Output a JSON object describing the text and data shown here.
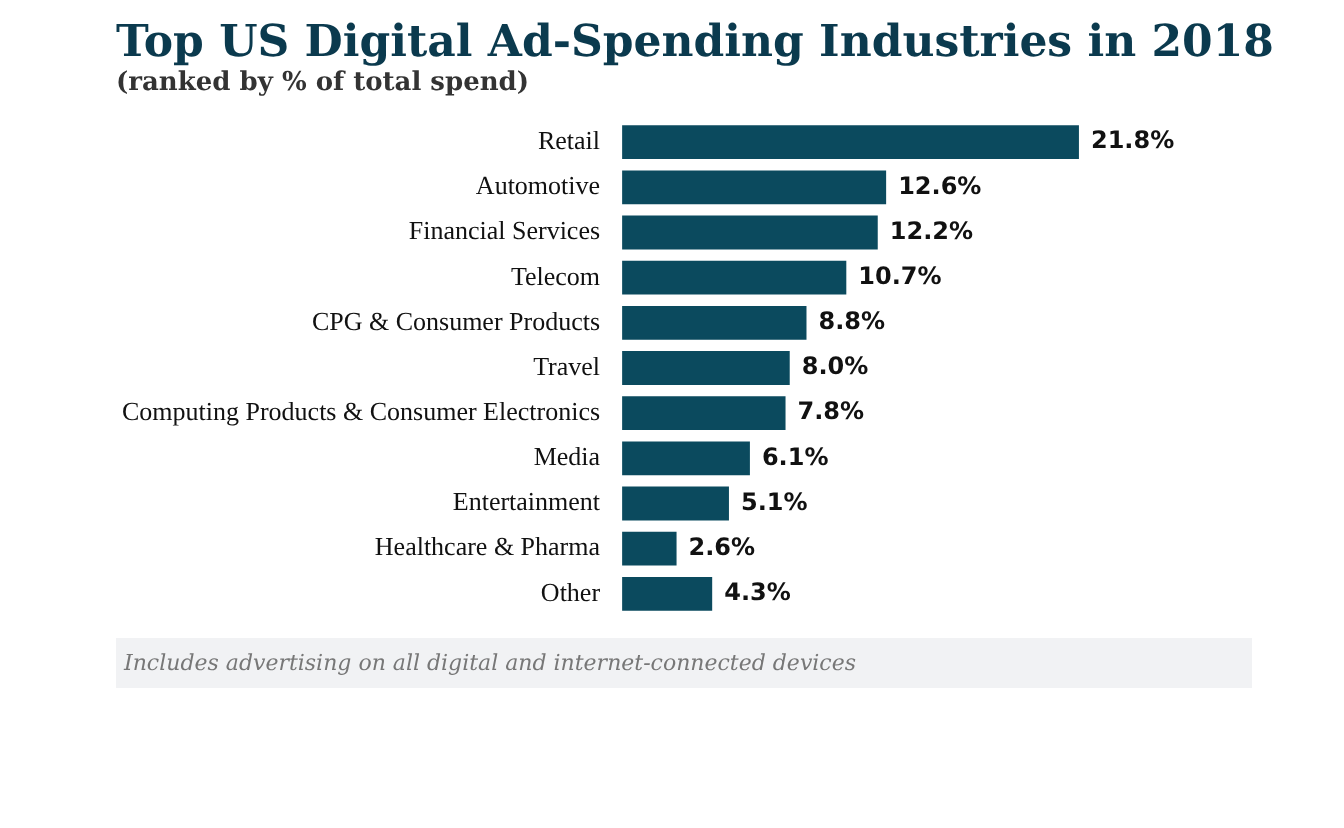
{
  "chart_data": {
    "type": "bar",
    "orientation": "horizontal",
    "title": "Top US Digital Ad-Spending Industries in 2018",
    "subtitle": "(ranked by % of total spend)",
    "categories": [
      "Retail",
      "Automotive",
      "Financial Services",
      "Telecom",
      "CPG & Consumer Products",
      "Travel",
      "Computing Products & Consumer Electronics",
      "Media",
      "Entertainment",
      "Healthcare & Pharma",
      "Other"
    ],
    "values": [
      21.8,
      12.6,
      12.2,
      10.7,
      8.8,
      8.0,
      7.8,
      6.1,
      5.1,
      2.6,
      4.3
    ],
    "value_labels": [
      "21.8%",
      "12.6%",
      "12.2%",
      "10.7%",
      "8.8%",
      "8.0%",
      "7.8%",
      "6.1%",
      "5.1%",
      "2.6%",
      "4.3%"
    ],
    "color": "#0b4a5e",
    "annotations": [
      "Includes advertising on all digital and internet-connected devices"
    ]
  }
}
